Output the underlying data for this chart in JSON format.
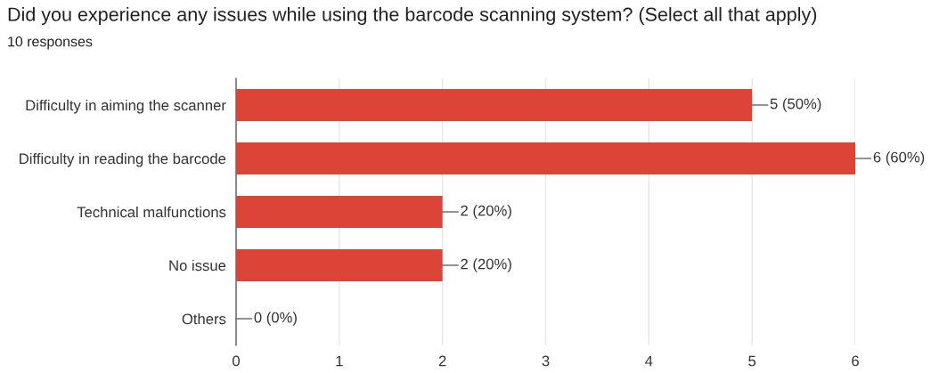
{
  "chart_data": {
    "type": "bar",
    "orientation": "horizontal",
    "title": "Did you experience any issues while using the barcode scanning system? (Select all that apply)",
    "subtitle": "10 responses",
    "categories": [
      "Difficulty in aiming the scanner",
      "Difficulty in reading the barcode",
      "Technical malfunctions",
      "No issue",
      "Others"
    ],
    "values": [
      5,
      6,
      2,
      2,
      0
    ],
    "value_labels": [
      "5 (50%)",
      "6 (60%)",
      "2 (20%)",
      "2 (20%)",
      "0 (0%)"
    ],
    "color": "#db4437",
    "xlim": [
      0,
      6
    ],
    "xticks": [
      0,
      1,
      2,
      3,
      4,
      5,
      6
    ],
    "grid": "x",
    "legend": false
  }
}
